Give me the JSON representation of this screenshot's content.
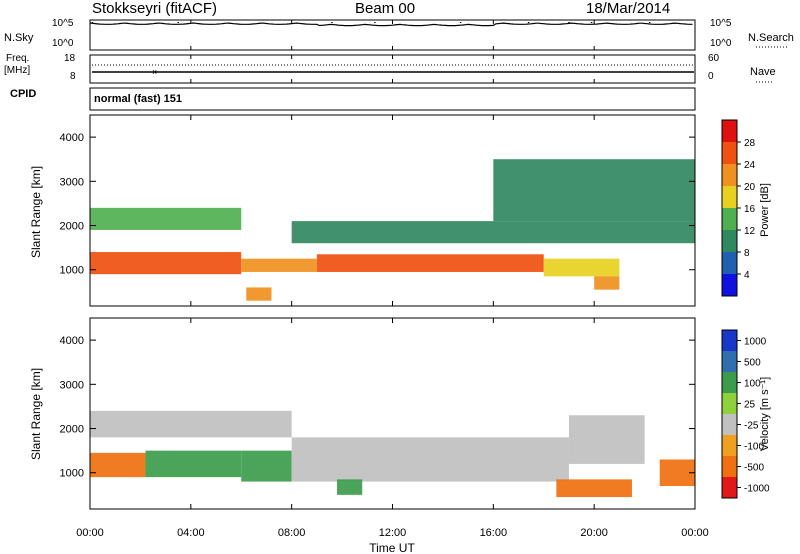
{
  "header": {
    "station": "Stokkseyri (fitACF)",
    "beam": "Beam 00",
    "date": "18/Mar/2014"
  },
  "nsky": {
    "label": "N.Sky",
    "right_label": "N.Search",
    "ticks_left": [
      "10^5",
      "10^0"
    ],
    "ticks_right": [
      "10^5",
      "10^0"
    ]
  },
  "freq": {
    "label_line1": "Freq.",
    "label_line2": "[MHz]",
    "ticks_left": [
      "18",
      "8"
    ],
    "ticks_right": [
      "60",
      "0"
    ],
    "right_label": "Nave"
  },
  "cpid": {
    "label": "CPID",
    "value": "normal (fast) 151"
  },
  "axes": {
    "ylabel": "Slant Range [km]",
    "xlabel": "Time UT",
    "y_ticks": [
      "1000",
      "2000",
      "3000",
      "4000"
    ],
    "x_ticks": [
      "00:00",
      "04:00",
      "08:00",
      "12:00",
      "16:00",
      "20:00",
      "00:00"
    ]
  },
  "colorbars": {
    "power": {
      "label": "Power [dB]",
      "ticks": [
        "4",
        "8",
        "12",
        "16",
        "20",
        "24",
        "28"
      ],
      "colors": [
        "#1010e0",
        "#2060b0",
        "#308860",
        "#50b050",
        "#e8d020",
        "#f09020",
        "#f05010",
        "#e01010"
      ]
    },
    "velocity": {
      "label": "Velocity [m s⁻¹]",
      "ticks": [
        "1000",
        "500",
        "100",
        "25",
        "-25",
        "-100",
        "-500",
        "-1000"
      ],
      "colors": [
        "#1838c8",
        "#2f6fb0",
        "#3c9c4c",
        "#8fd13a",
        "#c0c0c0",
        "#f0a020",
        "#f07010",
        "#e01818"
      ]
    }
  },
  "chart_data": [
    {
      "type": "line",
      "name": "N.Sky",
      "x_unit": "hours UT",
      "xlim": [
        0,
        24
      ],
      "ylim": [
        0,
        5
      ],
      "yscale": "log10",
      "baseline_log10": 4.8,
      "spikes": [
        {
          "x": 0.1,
          "y": 5.0
        },
        {
          "x": 3.5,
          "y": 5.0
        },
        {
          "x": 9.6,
          "y": 5.0
        },
        {
          "x": 11.3,
          "y": 5.0
        },
        {
          "x": 14.7,
          "y": 5.0
        },
        {
          "x": 17.4,
          "y": 5.0
        },
        {
          "x": 19.0,
          "y": 5.0
        },
        {
          "x": 19.9,
          "y": 5.0
        },
        {
          "x": 22.2,
          "y": 5.0
        }
      ]
    },
    {
      "type": "heatmap",
      "name": "Power",
      "x_unit": "hours UT",
      "xlim": [
        0,
        24
      ],
      "ylim": [
        180,
        4500
      ],
      "grid": false,
      "bands": [
        {
          "x_start": 0.0,
          "x_end": 6.0,
          "range_lo": 900,
          "range_hi": 1400,
          "value": 26
        },
        {
          "x_start": 6.0,
          "x_end": 9.0,
          "range_lo": 950,
          "range_hi": 1250,
          "value": 20
        },
        {
          "x_start": 9.0,
          "x_end": 18.0,
          "range_lo": 950,
          "range_hi": 1350,
          "value": 24
        },
        {
          "x_start": 18.0,
          "x_end": 21.0,
          "range_lo": 850,
          "range_hi": 1250,
          "value": 16
        },
        {
          "x_start": 0.0,
          "x_end": 6.0,
          "range_lo": 1900,
          "range_hi": 2400,
          "value": 14
        },
        {
          "x_start": 8.0,
          "x_end": 24.0,
          "range_lo": 1600,
          "range_hi": 2100,
          "value": 10
        },
        {
          "x_start": 16.0,
          "x_end": 24.0,
          "range_lo": 2100,
          "range_hi": 3500,
          "value": 8
        },
        {
          "x_start": 6.2,
          "x_end": 7.2,
          "range_lo": 300,
          "range_hi": 600,
          "value": 22
        },
        {
          "x_start": 20.0,
          "x_end": 21.0,
          "range_lo": 550,
          "range_hi": 850,
          "value": 22
        }
      ]
    },
    {
      "type": "heatmap",
      "name": "Velocity",
      "x_unit": "hours UT",
      "xlim": [
        0,
        24
      ],
      "ylim": [
        180,
        4500
      ],
      "grid": false,
      "bands": [
        {
          "x_start": 0.0,
          "x_end": 2.2,
          "range_lo": 900,
          "range_hi": 1450,
          "value": -300
        },
        {
          "x_start": 2.2,
          "x_end": 6.0,
          "range_lo": 900,
          "range_hi": 1500,
          "value": 400
        },
        {
          "x_start": 6.0,
          "x_end": 8.0,
          "range_lo": 800,
          "range_hi": 1500,
          "value": 150
        },
        {
          "x_start": 8.0,
          "x_end": 19.0,
          "range_lo": 800,
          "range_hi": 1800,
          "value": 0
        },
        {
          "x_start": 0.0,
          "x_end": 8.0,
          "range_lo": 1800,
          "range_hi": 2400,
          "value": 0
        },
        {
          "x_start": 19.0,
          "x_end": 22.0,
          "range_lo": 1200,
          "range_hi": 2300,
          "value": 0
        },
        {
          "x_start": 18.5,
          "x_end": 21.5,
          "range_lo": 450,
          "range_hi": 850,
          "value": -300
        },
        {
          "x_start": 9.8,
          "x_end": 10.8,
          "range_lo": 500,
          "range_hi": 850,
          "value": 120
        },
        {
          "x_start": 22.6,
          "x_end": 24.0,
          "range_lo": 700,
          "range_hi": 1300,
          "value": -300
        }
      ]
    }
  ]
}
